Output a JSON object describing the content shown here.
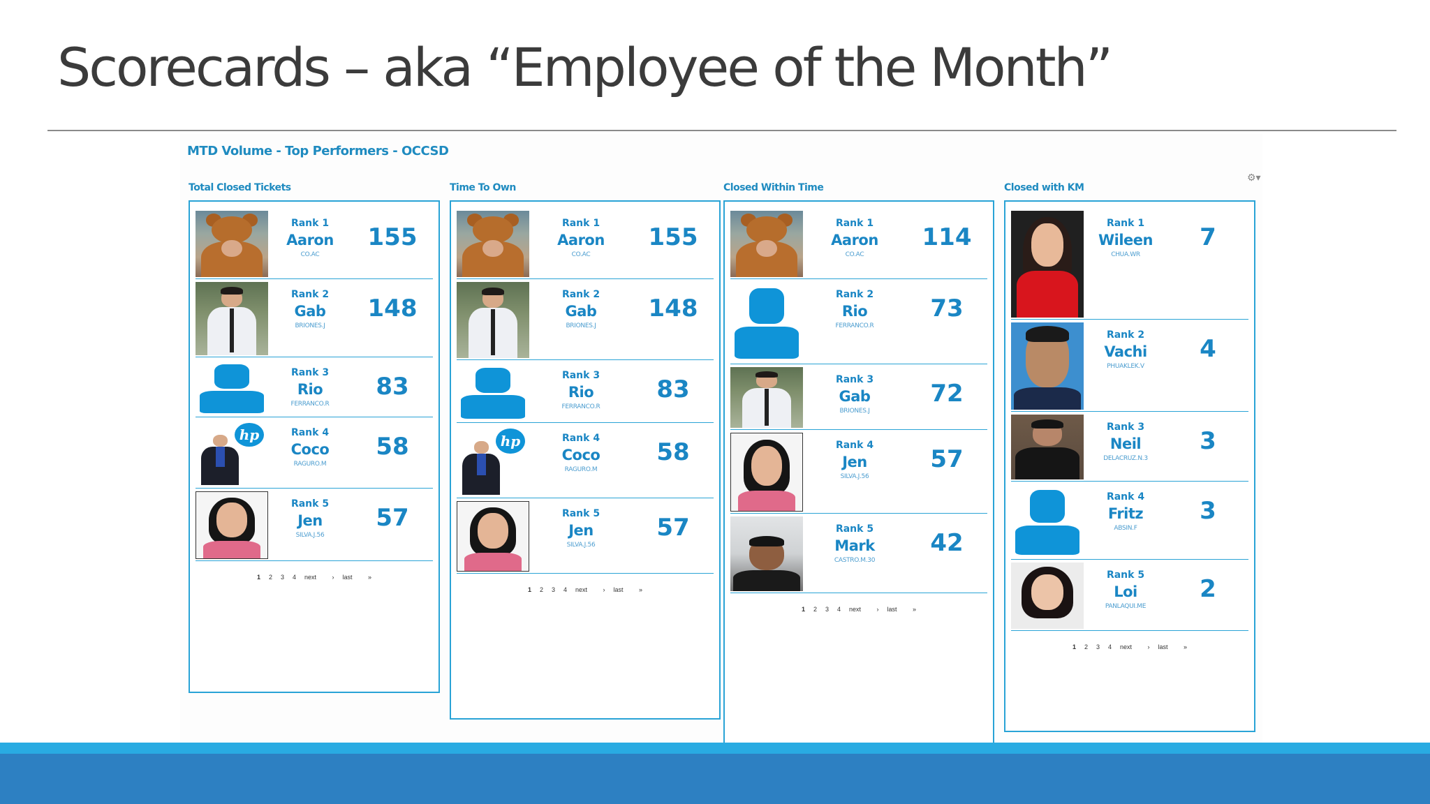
{
  "slide": {
    "title": "Scorecards – aka “Employee of the Month”"
  },
  "dashboard": {
    "title": "MTD Volume - Top Performers - OCCSD",
    "settings_icon": "gear-icon",
    "pager": [
      "1",
      "2",
      "3",
      "4",
      "next ›",
      "last »"
    ],
    "panels": [
      {
        "title": "Total Closed Tickets",
        "rows": [
          {
            "rank": "Rank 1",
            "name": "Aaron",
            "id": "CO.AC",
            "score": "155",
            "photo": "teddy-bear"
          },
          {
            "rank": "Rank 2",
            "name": "Gab",
            "id": "BRIONES.J",
            "score": "148",
            "photo": "man-white-shirt"
          },
          {
            "rank": "Rank 3",
            "name": "Rio",
            "id": "FERRANCO.R",
            "score": "83",
            "photo": "placeholder-avatar"
          },
          {
            "rank": "Rank 4",
            "name": "Coco",
            "id": "RAGURO.M",
            "score": "58",
            "photo": "man-suit-hp-logo"
          },
          {
            "rank": "Rank 5",
            "name": "Jen",
            "id": "SILVA.J.56",
            "score": "57",
            "photo": "woman-portrait"
          }
        ]
      },
      {
        "title": "Time To Own",
        "rows": [
          {
            "rank": "Rank 1",
            "name": "Aaron",
            "id": "CO.AC",
            "score": "155",
            "photo": "teddy-bear"
          },
          {
            "rank": "Rank 2",
            "name": "Gab",
            "id": "BRIONES.J",
            "score": "148",
            "photo": "man-white-shirt"
          },
          {
            "rank": "Rank 3",
            "name": "Rio",
            "id": "FERRANCO.R",
            "score": "83",
            "photo": "placeholder-avatar"
          },
          {
            "rank": "Rank 4",
            "name": "Coco",
            "id": "RAGURO.M",
            "score": "58",
            "photo": "man-suit-hp-logo"
          },
          {
            "rank": "Rank 5",
            "name": "Jen",
            "id": "SILVA.J.56",
            "score": "57",
            "photo": "woman-portrait"
          }
        ]
      },
      {
        "title": "Closed Within Time",
        "rows": [
          {
            "rank": "Rank 1",
            "name": "Aaron",
            "id": "CO.AC",
            "score": "114",
            "photo": "teddy-bear"
          },
          {
            "rank": "Rank 2",
            "name": "Rio",
            "id": "FERRANCO.R",
            "score": "73",
            "photo": "placeholder-avatar"
          },
          {
            "rank": "Rank 3",
            "name": "Gab",
            "id": "BRIONES.J",
            "score": "72",
            "photo": "man-white-shirt"
          },
          {
            "rank": "Rank 4",
            "name": "Jen",
            "id": "SILVA.J.56",
            "score": "57",
            "photo": "woman-portrait"
          },
          {
            "rank": "Rank 5",
            "name": "Mark",
            "id": "CASTRO.M.30",
            "score": "42",
            "photo": "man-office"
          }
        ]
      },
      {
        "title": "Closed with KM",
        "rows": [
          {
            "rank": "Rank 1",
            "name": "Wileen",
            "id": "CHUA.WR",
            "score": "7",
            "photo": "woman-red-dress"
          },
          {
            "rank": "Rank 2",
            "name": "Vachi",
            "id": "PHUAKLEK.V",
            "score": "4",
            "photo": "man-blue-background"
          },
          {
            "rank": "Rank 3",
            "name": "Neil",
            "id": "DELACRUZ.N.3",
            "score": "3",
            "photo": "man-dark-shirt"
          },
          {
            "rank": "Rank 4",
            "name": "Fritz",
            "id": "ABSIN.F",
            "score": "3",
            "photo": "placeholder-avatar"
          },
          {
            "rank": "Rank 5",
            "name": "Loi",
            "id": "PANLAQUI.ME",
            "score": "2",
            "photo": "woman-long-hair"
          }
        ]
      }
    ]
  },
  "colors": {
    "accent": "#1a86c4",
    "panel_border": "#29a3d6",
    "band": "#2d80c2",
    "stripe": "#29abe2",
    "title_text": "#3b3b3b"
  }
}
